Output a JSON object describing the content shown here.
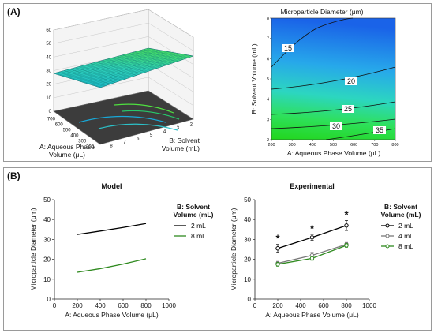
{
  "panel_a": {
    "label": "(A)",
    "surface": {
      "z_ticks": [
        "0",
        "10",
        "20",
        "30",
        "40",
        "50",
        "60"
      ],
      "x_ticks": [
        "200",
        "300",
        "400",
        "500",
        "600",
        "700"
      ],
      "y_ticks": [
        "2",
        "3",
        "4",
        "5",
        "6",
        "7",
        "8"
      ],
      "x_label_1": "A: Aqueous Phase",
      "x_label_2": "Volume (μL)",
      "y_label_1": "B: Solvent",
      "y_label_2": "Volume (mL)"
    },
    "contour": {
      "title": "Microparticle Diameter (μm)",
      "x_label": "A: Aqueous Phase Volume (μL)",
      "y_label": "B: Solvent Volume (mL)",
      "x_ticks": [
        "200",
        "300",
        "400",
        "500",
        "600",
        "700",
        "800"
      ],
      "y_ticks": [
        "2",
        "3",
        "4",
        "5",
        "6",
        "7",
        "8"
      ],
      "levels": [
        "15",
        "20",
        "25",
        "30",
        "35"
      ]
    }
  },
  "panel_b": {
    "label": "(B)",
    "legend_title_1": "B: Solvent",
    "legend_title_2": "Volume (mL)"
  },
  "chart_data": [
    {
      "type": "line",
      "title": "Model",
      "xlabel": "A: Aqueous Phase Volume (μL)",
      "ylabel": "Microparticle Diameter (μm)",
      "xlim": [
        0,
        1000
      ],
      "ylim": [
        0,
        50
      ],
      "x_ticks": [
        0,
        200,
        400,
        600,
        800,
        1000
      ],
      "y_ticks": [
        0,
        10,
        20,
        30,
        40,
        50
      ],
      "series": [
        {
          "name": "2 mL",
          "color": "#000000",
          "x": [
            200,
            400,
            600,
            800
          ],
          "y": [
            32.5,
            34.2,
            36.0,
            38.0
          ]
        },
        {
          "name": "8 mL",
          "color": "#2f8a1f",
          "x": [
            200,
            400,
            600,
            800
          ],
          "y": [
            13.5,
            15.3,
            17.6,
            20.3
          ]
        }
      ]
    },
    {
      "type": "line",
      "title": "Experimental",
      "xlabel": "A: Aqueous Phase Volume (μL)",
      "ylabel": "Microparticle Diameter (μm)",
      "xlim": [
        0,
        1000
      ],
      "ylim": [
        0,
        50
      ],
      "x_ticks": [
        0,
        200,
        400,
        600,
        800,
        1000
      ],
      "y_ticks": [
        0,
        10,
        20,
        30,
        40,
        50
      ],
      "series": [
        {
          "name": "2 mL",
          "color": "#000000",
          "x": [
            200,
            500,
            800
          ],
          "y": [
            25.5,
            31.0,
            37.0
          ],
          "err": [
            2.0,
            1.5,
            2.5
          ]
        },
        {
          "name": "4 mL",
          "color": "#7a7a7a",
          "x": [
            200,
            500,
            800
          ],
          "y": [
            18.0,
            22.0,
            27.5
          ],
          "err": [
            1.0,
            1.5,
            1.0
          ]
        },
        {
          "name": "8 mL",
          "color": "#2f8a1f",
          "x": [
            200,
            500,
            800
          ],
          "y": [
            17.5,
            20.5,
            27.0
          ],
          "err": [
            1.0,
            1.0,
            1.0
          ]
        }
      ],
      "annotations": [
        {
          "text": "*",
          "x": 200
        },
        {
          "text": "*",
          "x": 500
        },
        {
          "text": "*",
          "x": 800
        }
      ]
    }
  ]
}
